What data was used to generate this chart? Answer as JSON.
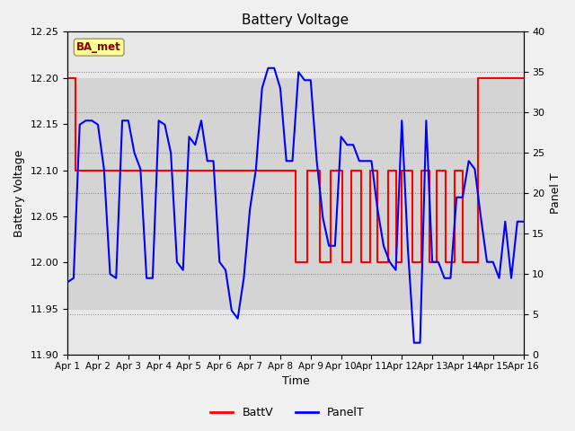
{
  "title": "Battery Voltage",
  "ylabel_left": "Battery Voltage",
  "ylabel_right": "Panel T",
  "xlabel": "Time",
  "ylim_left": [
    11.9,
    12.25
  ],
  "ylim_right": [
    0,
    40
  ],
  "xlim": [
    0,
    15
  ],
  "xtick_labels": [
    "Apr 1",
    "Apr 2",
    "Apr 3",
    "Apr 4",
    "Apr 5",
    "Apr 6",
    "Apr 7",
    "Apr 8",
    "Apr 9",
    "Apr 10",
    "Apr 11",
    "Apr 12",
    "Apr 13",
    "Apr 14",
    "Apr 15",
    "Apr 16"
  ],
  "xtick_positions": [
    0,
    1,
    2,
    3,
    4,
    5,
    6,
    7,
    8,
    9,
    10,
    11,
    12,
    13,
    14,
    15
  ],
  "yticks_left": [
    11.9,
    11.95,
    12.0,
    12.05,
    12.1,
    12.15,
    12.2,
    12.25
  ],
  "yticks_right": [
    0,
    5,
    10,
    15,
    20,
    25,
    30,
    35,
    40
  ],
  "background_color": "#f0f0f0",
  "plot_bg_color": "#e8e8e8",
  "ba_met_label": "BA_met",
  "ba_met_bg": "#ffff99",
  "ba_met_border": "#999966",
  "legend_labels": [
    "BattV",
    "PanelT"
  ],
  "legend_colors": [
    "red",
    "blue"
  ],
  "battv_color": "red",
  "panelt_color": "blue",
  "battv_x": [
    0.0,
    0.25,
    0.25,
    7.5,
    7.5,
    7.9,
    7.9,
    8.3,
    8.3,
    8.65,
    8.65,
    9.05,
    9.05,
    9.35,
    9.35,
    9.65,
    9.65,
    9.95,
    9.95,
    10.2,
    10.2,
    10.55,
    10.55,
    10.8,
    10.8,
    11.0,
    11.0,
    11.35,
    11.35,
    11.65,
    11.65,
    11.9,
    11.9,
    12.15,
    12.15,
    12.45,
    12.45,
    12.75,
    12.75,
    13.0,
    13.0,
    13.5,
    13.5,
    14.0,
    14.0,
    14.3,
    14.3,
    15.0
  ],
  "battv_y": [
    12.2,
    12.2,
    12.1,
    12.1,
    12.0,
    12.0,
    12.1,
    12.1,
    12.0,
    12.0,
    12.1,
    12.1,
    12.0,
    12.0,
    12.1,
    12.1,
    12.0,
    12.0,
    12.1,
    12.1,
    12.0,
    12.0,
    12.1,
    12.1,
    12.0,
    12.0,
    12.1,
    12.1,
    12.0,
    12.0,
    12.1,
    12.1,
    12.0,
    12.0,
    12.1,
    12.1,
    12.0,
    12.0,
    12.1,
    12.1,
    12.0,
    12.0,
    12.2,
    12.2,
    12.2,
    12.2,
    12.2,
    12.2
  ],
  "panelt_y_raw": [
    9.0,
    9.5,
    28.5,
    29.0,
    29.0,
    28.5,
    23.0,
    10.0,
    9.5,
    29.0,
    29.0,
    25.0,
    23.0,
    9.5,
    9.5,
    29.0,
    28.5,
    25.0,
    11.5,
    10.5,
    27.0,
    26.0,
    29.0,
    24.0,
    24.0,
    11.5,
    10.5,
    5.5,
    4.5,
    9.5,
    18.0,
    23.0,
    33.0,
    35.5,
    35.5,
    33.0,
    24.0,
    24.0,
    35.0,
    34.0,
    34.0,
    24.0,
    17.0,
    13.5,
    13.5,
    27.0,
    26.0,
    26.0,
    24.0,
    24.0,
    24.0,
    18.0,
    13.5,
    11.5,
    10.5,
    29.0,
    13.0,
    1.5,
    1.5,
    29.0,
    11.5,
    11.5,
    9.5,
    9.5,
    19.5,
    19.5,
    24.0,
    23.0,
    17.0,
    11.5,
    11.5,
    9.5,
    16.5,
    9.5,
    16.5,
    16.5
  ],
  "panelt_x": [
    0.0,
    0.2,
    0.4,
    0.6,
    0.8,
    1.0,
    1.2,
    1.4,
    1.6,
    1.8,
    2.0,
    2.2,
    2.4,
    2.6,
    2.8,
    3.0,
    3.2,
    3.4,
    3.6,
    3.8,
    4.0,
    4.2,
    4.4,
    4.6,
    4.8,
    5.0,
    5.2,
    5.4,
    5.6,
    5.8,
    6.0,
    6.2,
    6.4,
    6.6,
    6.8,
    7.0,
    7.2,
    7.4,
    7.6,
    7.8,
    8.0,
    8.2,
    8.4,
    8.6,
    8.8,
    9.0,
    9.2,
    9.4,
    9.6,
    9.8,
    10.0,
    10.2,
    10.4,
    10.6,
    10.8,
    11.0,
    11.2,
    11.4,
    11.6,
    11.8,
    12.0,
    12.2,
    12.4,
    12.6,
    12.8,
    13.0,
    13.2,
    13.4,
    13.6,
    13.8,
    14.0,
    14.2,
    14.4,
    14.6,
    14.8,
    15.0
  ],
  "gray_band_ymin": 11.95,
  "gray_band_ymax": 12.2,
  "gray_band_color": "#d4d4d4"
}
